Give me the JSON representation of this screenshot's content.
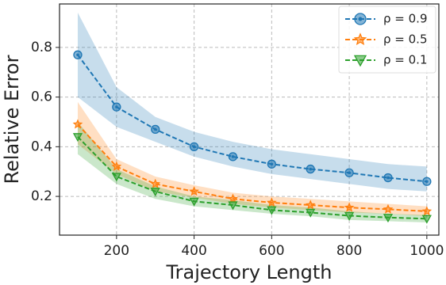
{
  "chart_data": {
    "type": "line",
    "xlabel": "Trajectory Length",
    "ylabel": "Relative Error",
    "x": [
      100,
      200,
      300,
      400,
      500,
      600,
      700,
      800,
      900,
      1000
    ],
    "xlim": [
      53,
      1031
    ],
    "ylim": [
      0.044,
      0.975
    ],
    "xticks": [
      200,
      400,
      600,
      800,
      1000
    ],
    "yticks": [
      0.2,
      0.4,
      0.6,
      0.8
    ],
    "grid": true,
    "legend": "upper right",
    "series": [
      {
        "name": "ρ = 0.9",
        "color": "#1f77b4",
        "marker": "circle",
        "values": [
          0.77,
          0.56,
          0.47,
          0.4,
          0.36,
          0.33,
          0.31,
          0.295,
          0.275,
          0.26
        ],
        "upper": [
          0.94,
          0.64,
          0.52,
          0.46,
          0.42,
          0.39,
          0.37,
          0.35,
          0.33,
          0.32
        ],
        "lower": [
          0.6,
          0.48,
          0.42,
          0.36,
          0.32,
          0.29,
          0.27,
          0.25,
          0.23,
          0.22
        ]
      },
      {
        "name": "ρ = 0.5",
        "color": "#ff7f0e",
        "marker": "star",
        "values": [
          0.49,
          0.32,
          0.25,
          0.22,
          0.19,
          0.175,
          0.165,
          0.155,
          0.148,
          0.14
        ],
        "upper": [
          0.58,
          0.35,
          0.28,
          0.245,
          0.215,
          0.2,
          0.19,
          0.18,
          0.17,
          0.16
        ],
        "lower": [
          0.41,
          0.29,
          0.22,
          0.195,
          0.17,
          0.155,
          0.145,
          0.135,
          0.13,
          0.12
        ]
      },
      {
        "name": "ρ = 0.1",
        "color": "#2ca02c",
        "marker": "triangle_down",
        "values": [
          0.44,
          0.28,
          0.22,
          0.18,
          0.165,
          0.145,
          0.135,
          0.122,
          0.115,
          0.11
        ],
        "upper": [
          0.5,
          0.31,
          0.24,
          0.2,
          0.185,
          0.165,
          0.155,
          0.14,
          0.13,
          0.125
        ],
        "lower": [
          0.37,
          0.25,
          0.19,
          0.16,
          0.145,
          0.13,
          0.12,
          0.105,
          0.1,
          0.095
        ]
      }
    ]
  }
}
